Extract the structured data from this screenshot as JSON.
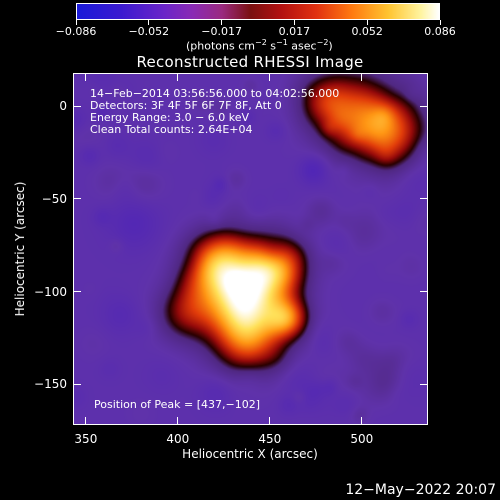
{
  "colorbar": {
    "tick_labels": [
      "−0.086",
      "−0.052",
      "−0.017",
      "0.017",
      "0.052",
      "0.086"
    ],
    "units": "(photons cm",
    "units_exp1": "−2",
    "units_mid": " s",
    "units_exp2": "−1",
    "units_mid2": " asec",
    "units_exp3": "−2",
    "units_end": ")",
    "gradient_colors": [
      "#1a1ad8",
      "#6a24c8",
      "#9a2a80",
      "#7a1010",
      "#e03010",
      "#ff7a10",
      "#ffc430",
      "#ffffff"
    ]
  },
  "plot": {
    "title": "Reconstructed RHESSI Image",
    "xlabel": "Heliocentric X (arcsec)",
    "ylabel": "Heliocentric Y (arcsec)",
    "x_tick_labels": [
      "350",
      "400",
      "450",
      "500"
    ],
    "y_tick_labels": [
      "0",
      "−50",
      "−100",
      "−150"
    ],
    "xlim": [
      343,
      536
    ],
    "ylim": [
      -172,
      18
    ],
    "annotations": {
      "time_range": "14−Feb−2014 03:56:56.000 to 04:02:56.000",
      "detectors": "Detectors: 3F 4F 5F 6F 7F 8F, Att 0",
      "energy": "Energy Range: 3.0 − 6.0 keV",
      "clean": "Clean     Total counts: 2.64E+04",
      "peak": "Position of Peak = [437,−102]"
    },
    "peak_position": [
      437,
      -102
    ]
  },
  "footer": {
    "timestamp": "12−May−2022 20:07"
  }
}
